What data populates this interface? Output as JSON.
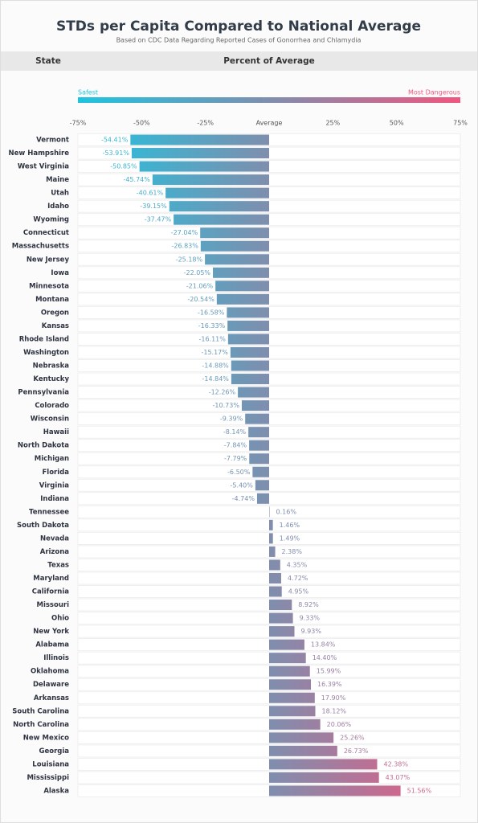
{
  "chart_data": {
    "type": "bar",
    "orientation": "horizontal",
    "title": "STDs per Capita Compared to National Average",
    "subtitle": "Based on CDC Data Regarding Reported Cases of Gonorrhea and Chlamydia",
    "y_label": "State",
    "x_label": "Percent of Average",
    "legend": {
      "low": "Safest",
      "high": "Most Dangerous"
    },
    "colors": [
      "#1ec4e0",
      "#7f8eae",
      "#f0567f"
    ],
    "xlim": [
      -75,
      75
    ],
    "xticks": [
      {
        "value": -75,
        "label": "-75%"
      },
      {
        "value": -50,
        "label": "-50%"
      },
      {
        "value": -25,
        "label": "-25%"
      },
      {
        "value": 0,
        "label": "Average"
      },
      {
        "value": 25,
        "label": "25%"
      },
      {
        "value": 50,
        "label": "50%"
      },
      {
        "value": 75,
        "label": "75%"
      }
    ],
    "grid": false,
    "categories": [
      "Vermont",
      "New Hampshire",
      "West Virginia",
      "Maine",
      "Utah",
      "Idaho",
      "Wyoming",
      "Connecticut",
      "Massachusetts",
      "New Jersey",
      "Iowa",
      "Minnesota",
      "Montana",
      "Oregon",
      "Kansas",
      "Rhode Island",
      "Washington",
      "Nebraska",
      "Kentucky",
      "Pennsylvania",
      "Colorado",
      "Wisconsin",
      "Hawaii",
      "North Dakota",
      "Michigan",
      "Florida",
      "Virginia",
      "Indiana",
      "Tennessee",
      "South Dakota",
      "Nevada",
      "Arizona",
      "Texas",
      "Maryland",
      "California",
      "Missouri",
      "Ohio",
      "New York",
      "Alabama",
      "Illinois",
      "Oklahoma",
      "Delaware",
      "Arkansas",
      "South Carolina",
      "North Carolina",
      "New Mexico",
      "Georgia",
      "Louisiana",
      "Mississippi",
      "Alaska"
    ],
    "values": [
      -54.41,
      -53.91,
      -50.85,
      -45.74,
      -40.61,
      -39.15,
      -37.47,
      -27.04,
      -26.83,
      -25.18,
      -22.05,
      -21.06,
      -20.54,
      -16.58,
      -16.33,
      -16.11,
      -15.17,
      -14.88,
      -14.84,
      -12.26,
      -10.73,
      -9.39,
      -8.14,
      -7.84,
      -7.79,
      -6.5,
      -5.4,
      -4.74,
      0.16,
      1.46,
      1.49,
      2.38,
      4.35,
      4.72,
      4.95,
      8.92,
      9.33,
      9.93,
      13.84,
      14.4,
      15.99,
      16.39,
      17.9,
      18.12,
      20.06,
      25.26,
      26.73,
      42.38,
      43.07,
      51.56
    ],
    "value_labels": [
      "-54.41%",
      "-53.91%",
      "-50.85%",
      "-45.74%",
      "-40.61%",
      "-39.15%",
      "-37.47%",
      "-27.04%",
      "-26.83%",
      "-25.18%",
      "-22.05%",
      "-21.06%",
      "-20.54%",
      "-16.58%",
      "-16.33%",
      "-16.11%",
      "-15.17%",
      "-14.88%",
      "-14.84%",
      "-12.26%",
      "-10.73%",
      "-9.39%",
      "-8.14%",
      "-7.84%",
      "-7.79%",
      "-6.50%",
      "-5.40%",
      "-4.74%",
      "0.16%",
      "1.46%",
      "1.49%",
      "2.38%",
      "4.35%",
      "4.72%",
      "4.95%",
      "8.92%",
      "9.33%",
      "9.93%",
      "13.84%",
      "14.40%",
      "15.99%",
      "16.39%",
      "17.90%",
      "18.12%",
      "20.06%",
      "25.26%",
      "26.73%",
      "42.38%",
      "43.07%",
      "51.56%"
    ]
  }
}
